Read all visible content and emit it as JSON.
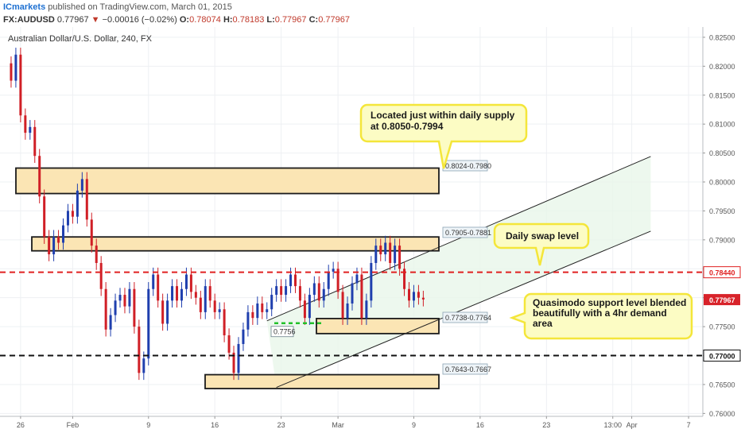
{
  "header": {
    "publisher": "ICmarkets",
    "published_text": "published on TradingView.com, March 01, 2015",
    "symbol": "FX:AUDUSD",
    "last": "0.77967",
    "change": "−0.00016 (−0.02%)",
    "open_label": "O:",
    "open": "0.78074",
    "high_label": "H:",
    "high": "0.78183",
    "low_label": "L:",
    "low": "0.77967",
    "close_label": "C:",
    "close": "0.77967"
  },
  "chart_data": {
    "type": "candlestick",
    "title": "Australian Dollar/U.S. Dollar, 240, FX",
    "ylim": [
      0.7595,
      0.8265
    ],
    "y_ticks": [
      "0.82500",
      "0.82000",
      "0.81500",
      "0.81000",
      "0.80500",
      "0.80000",
      "0.79500",
      "0.79000",
      "0.78500",
      "0.78000",
      "0.77500",
      "0.77000",
      "0.76500",
      "0.76000"
    ],
    "x_ticks": [
      {
        "label": "26",
        "t": 1.5
      },
      {
        "label": "Feb",
        "t": 7
      },
      {
        "label": "9",
        "t": 15
      },
      {
        "label": "16",
        "t": 22
      },
      {
        "label": "23",
        "t": 29
      },
      {
        "label": "Mar",
        "t": 35
      },
      {
        "label": "9",
        "t": 43
      },
      {
        "label": "16",
        "t": 50
      },
      {
        "label": "23",
        "t": 57
      },
      {
        "label": "13:00",
        "t": 64
      },
      {
        "label": "Apr",
        "t": 66
      },
      {
        "label": "7",
        "t": 72
      }
    ],
    "price_points": [
      [
        0,
        0.8205
      ],
      [
        0.5,
        0.8175
      ],
      [
        1,
        0.822
      ],
      [
        1.5,
        0.8115
      ],
      [
        2,
        0.8085
      ],
      [
        2.5,
        0.8095
      ],
      [
        3,
        0.8045
      ],
      [
        3.5,
        0.7975
      ],
      [
        4,
        0.7905
      ],
      [
        4.5,
        0.7875
      ],
      [
        5,
        0.7905
      ],
      [
        5.5,
        0.7895
      ],
      [
        6,
        0.7925
      ],
      [
        6.5,
        0.795
      ],
      [
        7,
        0.794
      ],
      [
        7.5,
        0.7985
      ],
      [
        8,
        0.8005
      ],
      [
        8.5,
        0.7935
      ],
      [
        9,
        0.789
      ],
      [
        9.5,
        0.786
      ],
      [
        10,
        0.7815
      ],
      [
        10.5,
        0.7745
      ],
      [
        11,
        0.777
      ],
      [
        11.5,
        0.7795
      ],
      [
        12,
        0.7805
      ],
      [
        12.5,
        0.7785
      ],
      [
        13,
        0.7815
      ],
      [
        13.5,
        0.775
      ],
      [
        14,
        0.767
      ],
      [
        14.5,
        0.7695
      ],
      [
        15,
        0.7815
      ],
      [
        15.5,
        0.784
      ],
      [
        16,
        0.7795
      ],
      [
        16.5,
        0.7755
      ],
      [
        17,
        0.7795
      ],
      [
        17.5,
        0.782
      ],
      [
        18,
        0.7795
      ],
      [
        18.5,
        0.7815
      ],
      [
        19,
        0.784
      ],
      [
        19.5,
        0.781
      ],
      [
        20,
        0.78
      ],
      [
        20.5,
        0.7775
      ],
      [
        21,
        0.782
      ],
      [
        21.5,
        0.7795
      ],
      [
        22,
        0.7775
      ],
      [
        22.5,
        0.778
      ],
      [
        23,
        0.7735
      ],
      [
        23.5,
        0.7705
      ],
      [
        24,
        0.767
      ],
      [
        24.5,
        0.772
      ],
      [
        25,
        0.7745
      ],
      [
        25.5,
        0.7775
      ],
      [
        26,
        0.7765
      ],
      [
        26.5,
        0.779
      ],
      [
        27,
        0.7775
      ],
      [
        27.5,
        0.778
      ],
      [
        28,
        0.7805
      ],
      [
        28.5,
        0.782
      ],
      [
        29,
        0.7805
      ],
      [
        29.5,
        0.782
      ],
      [
        30,
        0.784
      ],
      [
        30.5,
        0.782
      ],
      [
        31,
        0.7795
      ],
      [
        31.5,
        0.7765
      ],
      [
        32,
        0.7805
      ],
      [
        32.5,
        0.7825
      ],
      [
        33,
        0.7795
      ],
      [
        33.5,
        0.7815
      ],
      [
        34,
        0.7845
      ],
      [
        34.5,
        0.785
      ],
      [
        35,
        0.781
      ],
      [
        35.5,
        0.7765
      ],
      [
        36,
        0.779
      ],
      [
        36.5,
        0.7825
      ],
      [
        37,
        0.784
      ],
      [
        37.5,
        0.7765
      ],
      [
        38,
        0.7795
      ],
      [
        38.5,
        0.786
      ],
      [
        39,
        0.789
      ],
      [
        39.5,
        0.7875
      ],
      [
        40,
        0.7895
      ],
      [
        40.5,
        0.786
      ],
      [
        41,
        0.789
      ],
      [
        41.5,
        0.785
      ],
      [
        42,
        0.7815
      ],
      [
        42.5,
        0.7795
      ],
      [
        43,
        0.781
      ],
      [
        43.5,
        0.78
      ],
      [
        44,
        0.7797
      ]
    ],
    "zones": [
      {
        "label": "0.8024-0.7980",
        "y_top": 0.8024,
        "y_bottom": 0.798,
        "t0": 8.5,
        "t1": 71.5
      },
      {
        "label": "0.7905-0.7881",
        "y_top": 0.7905,
        "y_bottom": 0.7881,
        "t0": 11,
        "t1": 71.5
      },
      {
        "label": "0.7738-0.7764",
        "y_top": 0.7764,
        "y_bottom": 0.7738,
        "t0": 44.5,
        "t1": 71.5
      },
      {
        "label": "0.7643-0.7667",
        "y_top": 0.7667,
        "y_bottom": 0.7643,
        "t0": 29.2,
        "t1": 71.5
      }
    ],
    "levels": [
      {
        "label": "0.78440",
        "value": 0.7844,
        "style": "red-dash"
      },
      {
        "label": "0.77000",
        "value": 0.77,
        "style": "black-dash"
      }
    ],
    "current_price": {
      "label": "0.77967",
      "value": 0.77967
    },
    "qm_level": {
      "label": "0.7756",
      "value": 0.7756,
      "t0": 38.5,
      "t1": 48
    },
    "channel": {
      "upper": [
        [
          27.5,
          0.776
        ],
        [
          68,
          0.8044
        ]
      ],
      "lower": [
        [
          28.5,
          0.7645
        ],
        [
          68,
          0.7915
        ]
      ]
    },
    "annotations": [
      {
        "text": [
          "Located just within daily supply",
          "at 0.8050-0.7994"
        ]
      },
      {
        "text": [
          "Daily swap level"
        ]
      },
      {
        "text": [
          "Quasimodo support level blended",
          "beautifully with a 4hr demand",
          "area"
        ]
      }
    ]
  }
}
